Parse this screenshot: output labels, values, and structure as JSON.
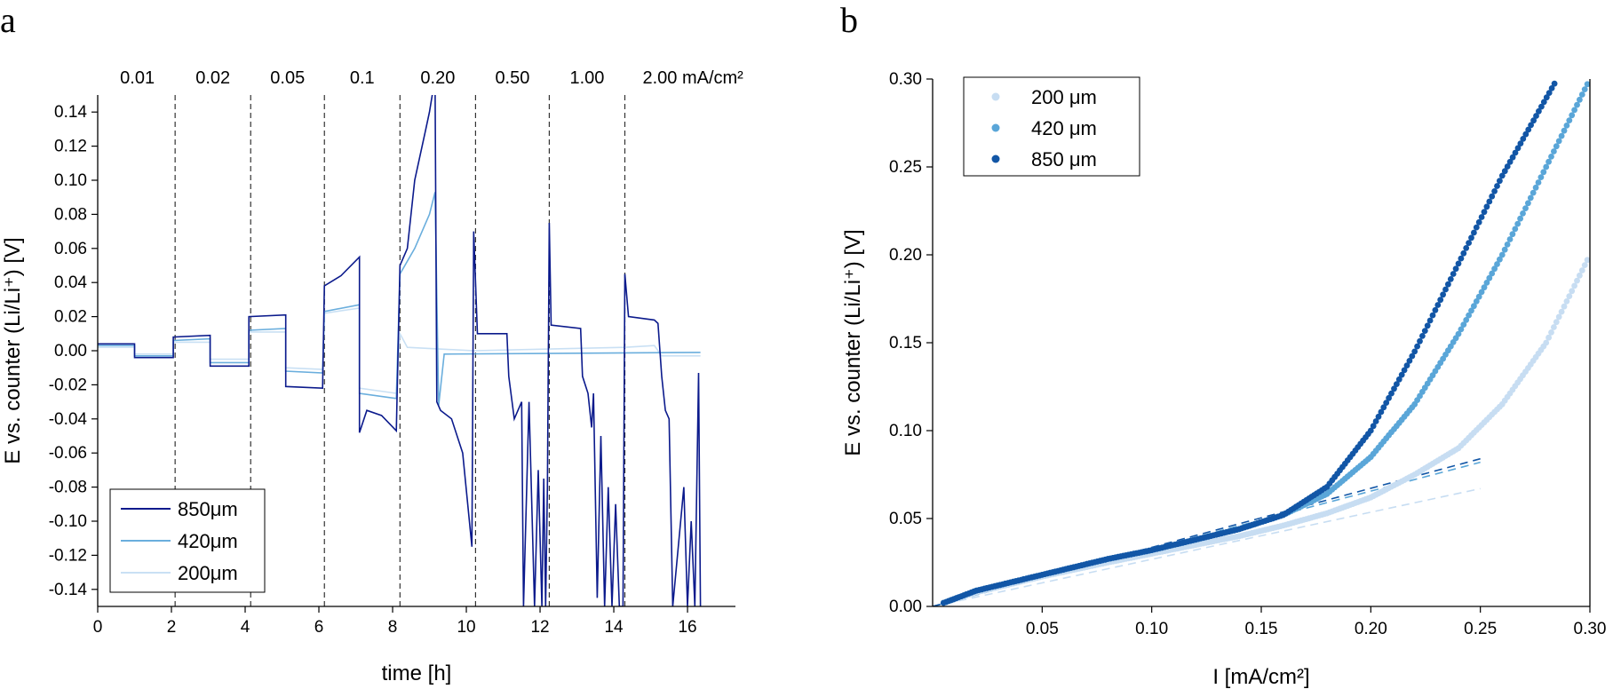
{
  "chart_data": [
    {
      "panel": "a",
      "type": "line",
      "xlabel": "time [h]",
      "ylabel": "E vs. counter (Li/Li⁺) [V]",
      "xlim": [
        0,
        17.3
      ],
      "ylim": [
        -0.15,
        0.15
      ],
      "x_ticks": [
        0,
        2,
        4,
        6,
        8,
        10,
        12,
        14,
        16
      ],
      "y_ticks": [
        -0.14,
        -0.12,
        -0.1,
        -0.08,
        -0.06,
        -0.04,
        -0.02,
        0.0,
        0.02,
        0.04,
        0.06,
        0.08,
        0.1,
        0.12,
        0.14
      ],
      "segment_boundaries_h": [
        2.1,
        4.15,
        6.15,
        8.2,
        10.25,
        12.25,
        14.3
      ],
      "segment_labels": [
        "0.01",
        "0.02",
        "0.05",
        "0.1",
        "0.20",
        "0.50",
        "1.00",
        "2.00 mA/cm²"
      ],
      "legend_position": "bottom-left",
      "series": [
        {
          "name": "850μm",
          "color": "#0b1a8c",
          "points": [
            [
              0,
              0.004
            ],
            [
              1.0,
              0.004
            ],
            [
              1.0,
              -0.004
            ],
            [
              2.05,
              -0.004
            ],
            [
              2.05,
              0.008
            ],
            [
              3.05,
              0.009
            ],
            [
              3.05,
              -0.009
            ],
            [
              4.1,
              -0.009
            ],
            [
              4.1,
              0.02
            ],
            [
              5.1,
              0.021
            ],
            [
              5.1,
              -0.021
            ],
            [
              6.1,
              -0.022
            ],
            [
              6.15,
              0.038
            ],
            [
              6.6,
              0.044
            ],
            [
              7.1,
              0.055
            ],
            [
              7.1,
              -0.048
            ],
            [
              7.3,
              -0.035
            ],
            [
              7.7,
              -0.038
            ],
            [
              8.1,
              -0.047
            ],
            [
              8.2,
              0.05
            ],
            [
              8.4,
              0.06
            ],
            [
              8.6,
              0.1
            ],
            [
              8.9,
              0.13
            ],
            [
              9.0,
              0.14
            ],
            [
              9.15,
              0.16
            ],
            [
              9.2,
              -0.03
            ],
            [
              9.3,
              -0.035
            ],
            [
              9.6,
              -0.04
            ],
            [
              9.9,
              -0.06
            ],
            [
              10.15,
              -0.115
            ],
            [
              10.2,
              0.07
            ],
            [
              10.3,
              0.01
            ],
            [
              11.1,
              0.01
            ],
            [
              11.15,
              -0.015
            ],
            [
              11.3,
              -0.04
            ],
            [
              11.5,
              -0.03
            ],
            [
              11.55,
              -0.15
            ],
            [
              11.7,
              -0.03
            ],
            [
              11.85,
              -0.15
            ],
            [
              11.95,
              -0.07
            ],
            [
              12.05,
              -0.15
            ],
            [
              12.1,
              -0.075
            ],
            [
              12.15,
              -0.15
            ],
            [
              12.2,
              -0.08
            ],
            [
              12.25,
              0.075
            ],
            [
              12.3,
              0.015
            ],
            [
              13.1,
              0.013
            ],
            [
              13.15,
              -0.015
            ],
            [
              13.3,
              -0.025
            ],
            [
              13.4,
              -0.045
            ],
            [
              13.45,
              -0.025
            ],
            [
              13.55,
              -0.145
            ],
            [
              13.65,
              -0.05
            ],
            [
              13.75,
              -0.15
            ],
            [
              13.85,
              -0.08
            ],
            [
              13.95,
              -0.15
            ],
            [
              14.05,
              -0.09
            ],
            [
              14.15,
              -0.15
            ],
            [
              14.25,
              -0.15
            ],
            [
              14.3,
              0.045
            ],
            [
              14.4,
              0.02
            ],
            [
              15.1,
              0.018
            ],
            [
              15.2,
              0.016
            ],
            [
              15.3,
              -0.015
            ],
            [
              15.4,
              -0.035
            ],
            [
              15.5,
              -0.04
            ],
            [
              15.6,
              -0.15
            ],
            [
              15.9,
              -0.08
            ],
            [
              16.0,
              -0.15
            ],
            [
              16.1,
              -0.1
            ],
            [
              16.2,
              -0.15
            ],
            [
              16.3,
              -0.013
            ],
            [
              16.35,
              -0.15
            ]
          ]
        },
        {
          "name": "420μm",
          "color": "#6aaedd",
          "points": [
            [
              0,
              0.003
            ],
            [
              1.0,
              0.003
            ],
            [
              1.0,
              -0.003
            ],
            [
              2.05,
              -0.003
            ],
            [
              2.05,
              0.006
            ],
            [
              3.05,
              0.007
            ],
            [
              3.05,
              -0.007
            ],
            [
              4.1,
              -0.007
            ],
            [
              4.1,
              0.012
            ],
            [
              5.1,
              0.013
            ],
            [
              5.1,
              -0.012
            ],
            [
              6.1,
              -0.013
            ],
            [
              6.15,
              0.023
            ],
            [
              7.1,
              0.027
            ],
            [
              7.1,
              -0.025
            ],
            [
              8.1,
              -0.028
            ],
            [
              8.2,
              0.045
            ],
            [
              8.6,
              0.06
            ],
            [
              9.0,
              0.08
            ],
            [
              9.15,
              0.093
            ],
            [
              9.25,
              -0.032
            ],
            [
              9.4,
              -0.002
            ],
            [
              16.35,
              -0.001
            ]
          ]
        },
        {
          "name": "200μm",
          "color": "#c9e0f4",
          "points": [
            [
              0,
              0.002
            ],
            [
              1.0,
              0.002
            ],
            [
              1.0,
              -0.002
            ],
            [
              2.05,
              -0.002
            ],
            [
              2.05,
              0.005
            ],
            [
              3.05,
              0.005
            ],
            [
              3.05,
              -0.005
            ],
            [
              4.1,
              -0.005
            ],
            [
              4.1,
              0.011
            ],
            [
              5.1,
              0.011
            ],
            [
              5.1,
              -0.01
            ],
            [
              6.1,
              -0.011
            ],
            [
              6.15,
              0.022
            ],
            [
              7.1,
              0.025
            ],
            [
              7.1,
              -0.022
            ],
            [
              8.1,
              -0.025
            ],
            [
              8.2,
              0.01
            ],
            [
              8.4,
              0.002
            ],
            [
              10.2,
              0.0
            ],
            [
              14.3,
              0.002
            ],
            [
              15.1,
              0.003
            ],
            [
              15.3,
              -0.003
            ],
            [
              16.35,
              -0.003
            ]
          ]
        }
      ]
    },
    {
      "panel": "b",
      "type": "scatter",
      "xlabel": "I [mA/cm²]",
      "ylabel": "E vs. counter (Li/Li⁺) [V]",
      "xlim": [
        0,
        0.3
      ],
      "ylim": [
        0,
        0.3
      ],
      "x_ticks": [
        0.05,
        0.1,
        0.15,
        0.2,
        0.25,
        0.3
      ],
      "y_ticks": [
        0.0,
        0.05,
        0.1,
        0.15,
        0.2,
        0.25,
        0.3
      ],
      "legend_position": "top-left",
      "series": [
        {
          "name": "200 μm",
          "color": "#c7ddf2",
          "points": [
            [
              0.005,
              0.002
            ],
            [
              0.02,
              0.008
            ],
            [
              0.05,
              0.017
            ],
            [
              0.08,
              0.025
            ],
            [
              0.1,
              0.03
            ],
            [
              0.12,
              0.035
            ],
            [
              0.14,
              0.04
            ],
            [
              0.16,
              0.046
            ],
            [
              0.18,
              0.053
            ],
            [
              0.2,
              0.062
            ],
            [
              0.22,
              0.075
            ],
            [
              0.24,
              0.09
            ],
            [
              0.26,
              0.115
            ],
            [
              0.28,
              0.15
            ],
            [
              0.3,
              0.2
            ]
          ],
          "fit_line": [
            [
              0.0,
              0.0
            ],
            [
              0.25,
              0.067
            ]
          ]
        },
        {
          "name": "420 μm",
          "color": "#5aa6d8",
          "points": [
            [
              0.005,
              0.002
            ],
            [
              0.02,
              0.009
            ],
            [
              0.05,
              0.018
            ],
            [
              0.08,
              0.027
            ],
            [
              0.1,
              0.032
            ],
            [
              0.12,
              0.038
            ],
            [
              0.14,
              0.044
            ],
            [
              0.16,
              0.052
            ],
            [
              0.18,
              0.064
            ],
            [
              0.2,
              0.085
            ],
            [
              0.22,
              0.115
            ],
            [
              0.24,
              0.155
            ],
            [
              0.26,
              0.2
            ],
            [
              0.28,
              0.25
            ],
            [
              0.3,
              0.3
            ]
          ],
          "fit_line": [
            [
              0.0,
              0.0
            ],
            [
              0.25,
              0.082
            ]
          ]
        },
        {
          "name": "850 μm",
          "color": "#1256a6",
          "points": [
            [
              0.005,
              0.002
            ],
            [
              0.02,
              0.009
            ],
            [
              0.05,
              0.018
            ],
            [
              0.08,
              0.027
            ],
            [
              0.1,
              0.032
            ],
            [
              0.12,
              0.038
            ],
            [
              0.14,
              0.044
            ],
            [
              0.16,
              0.052
            ],
            [
              0.18,
              0.068
            ],
            [
              0.2,
              0.1
            ],
            [
              0.22,
              0.145
            ],
            [
              0.24,
              0.195
            ],
            [
              0.26,
              0.245
            ],
            [
              0.285,
              0.3
            ]
          ],
          "fit_line": [
            [
              0.0,
              0.0
            ],
            [
              0.25,
              0.084
            ]
          ]
        }
      ]
    }
  ],
  "panel_letters": {
    "a": "a",
    "b": "b"
  }
}
